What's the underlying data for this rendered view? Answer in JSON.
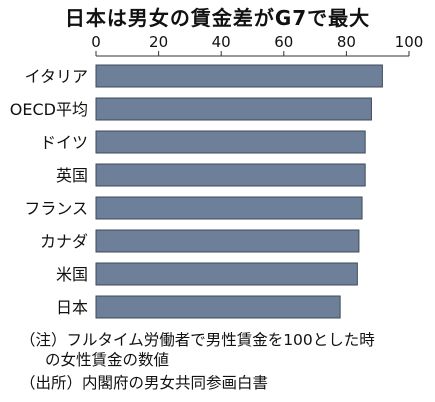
{
  "chart_data": {
    "type": "bar",
    "orientation": "horizontal",
    "title": "日本は男女の賃金差がG7で最大",
    "categories": [
      "イタリア",
      "OECD平均",
      "ドイツ",
      "英国",
      "フランス",
      "カナダ",
      "米国",
      "日本"
    ],
    "values": [
      91.5,
      88,
      86,
      86,
      85,
      84,
      83.5,
      78
    ],
    "xlim": [
      0,
      100
    ],
    "xticks": [
      0,
      20,
      40,
      60,
      80,
      100
    ],
    "xtick_labels": [
      "0",
      "20",
      "40",
      "60",
      "80",
      "100"
    ],
    "xlabel": "",
    "ylabel": "",
    "axis_position": "top",
    "grid": false,
    "bar_color": "#6d7f99",
    "bar_border": "#3f4a5a"
  },
  "notes": {
    "note1": "（注）フルタイム労働者で男性賃金を100とした時",
    "note2": "の女性賃金の数値",
    "source": "（出所）内閣府の男女共同参画白書"
  }
}
